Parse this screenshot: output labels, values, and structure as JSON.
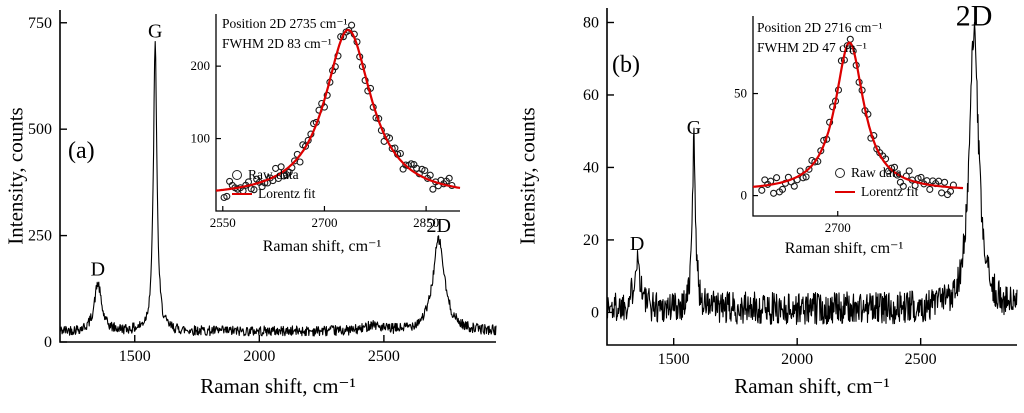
{
  "figure": {
    "background": "#ffffff"
  },
  "chart_data": [
    {
      "type": "line",
      "panel_label": "(a)",
      "xlabel": "Raman shift, cm⁻¹",
      "ylabel": "Intensity, counts",
      "xlim": [
        1200,
        2950
      ],
      "ylim": [
        0,
        780
      ],
      "xticks": [
        1500,
        2000,
        2500
      ],
      "yticks": [
        0,
        250,
        500,
        750
      ],
      "baseline_counts": 25,
      "noise_amplitude": 12,
      "line_color": "#000000",
      "peaks": [
        {
          "label": "D",
          "position": 1352,
          "amplitude": 112,
          "fwhm": 34
        },
        {
          "label": "G",
          "position": 1582,
          "amplitude": 672,
          "fwhm": 17
        },
        {
          "label": "",
          "position": 2455,
          "amplitude": 15,
          "fwhm": 60
        },
        {
          "label": "2D",
          "position": 2720,
          "amplitude": 215,
          "fwhm": 56
        }
      ],
      "inset": {
        "annotation_line1": "Position 2D 2735 cm⁻¹",
        "annotation_line2": "FWHM 2D 83 cm⁻¹",
        "xlabel": "Raman shift, cm⁻¹",
        "xlim": [
          2540,
          2900
        ],
        "ylim": [
          0,
          272
        ],
        "xticks": [
          2550,
          2700,
          2850
        ],
        "yticks": [
          100,
          200
        ],
        "fit": {
          "position": 2735,
          "fwhm": 83,
          "amplitude": 232,
          "baseline": 18
        },
        "scatter_step": 4,
        "scatter_noise": 11,
        "fit_color": "#dd0000",
        "legend": [
          {
            "symbol": "circle",
            "label": "Raw data"
          },
          {
            "symbol": "line",
            "label": "Lorentz fit"
          }
        ]
      }
    },
    {
      "type": "line",
      "panel_label": "(b)",
      "xlabel": "Raman shift, cm⁻¹",
      "ylabel": "Intensity, counts",
      "xlim": [
        1230,
        2890
      ],
      "ylim": [
        -9,
        84
      ],
      "xticks": [
        1500,
        2000,
        2500
      ],
      "yticks": [
        0,
        20,
        40,
        60,
        80
      ],
      "baseline_counts": 1,
      "noise_amplitude": 4.5,
      "line_color": "#000000",
      "peaks": [
        {
          "label": "D",
          "position": 1352,
          "amplitude": 14,
          "fwhm": 30
        },
        {
          "label": "G",
          "position": 1582,
          "amplitude": 46,
          "fwhm": 16
        },
        {
          "label": "2D",
          "position": 2716,
          "amplitude": 76,
          "fwhm": 45,
          "label_size": 30
        }
      ],
      "inset": {
        "annotation_line1": "Position 2D 2716 cm⁻¹",
        "annotation_line2": "FWHM 2D 47 cm⁻¹",
        "xlabel": "Raman shift, cm⁻¹",
        "xlim": [
          2585,
          2870
        ],
        "ylim": [
          -10,
          88
        ],
        "xticks": [
          2700
        ],
        "yticks": [
          0,
          50
        ],
        "fit": {
          "position": 2716,
          "fwhm": 47,
          "amplitude": 73,
          "baseline": 2
        },
        "scatter_step": 4,
        "scatter_noise": 4.5,
        "fit_color": "#dd0000",
        "legend": [
          {
            "symbol": "circle",
            "label": "Raw data"
          },
          {
            "symbol": "line",
            "label": "Lorentz fit"
          }
        ]
      }
    }
  ]
}
